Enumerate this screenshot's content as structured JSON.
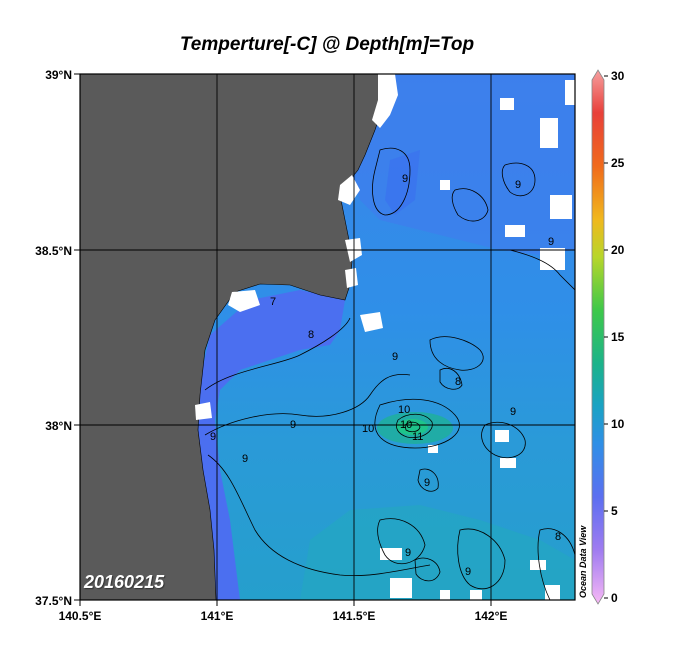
{
  "title": "Temperture[-C] @ Depth[m]=Top",
  "date": "20160215",
  "watermark": "Ocean Data View",
  "map": {
    "lat_labels": [
      "39°N",
      "38.5°N",
      "38°N",
      "37.5°N"
    ],
    "lon_labels": [
      "140.5°E",
      "141°E",
      "141.5°E",
      "142°E"
    ],
    "lat_range": [
      37.5,
      39.0
    ],
    "lon_range": [
      140.5,
      142.3
    ],
    "land_color": "#5a5a5a",
    "missing_color": "#ffffff"
  },
  "colorbar": {
    "ticks": [
      "30",
      "25",
      "20",
      "15",
      "10",
      "5",
      "0"
    ],
    "range": [
      0,
      30
    ]
  },
  "contour_labels": [
    "7",
    "8",
    "8",
    "8",
    "9",
    "9",
    "9",
    "9",
    "9",
    "9",
    "9",
    "9",
    "9",
    "10",
    "10",
    "10",
    "11",
    "9",
    "9"
  ]
}
